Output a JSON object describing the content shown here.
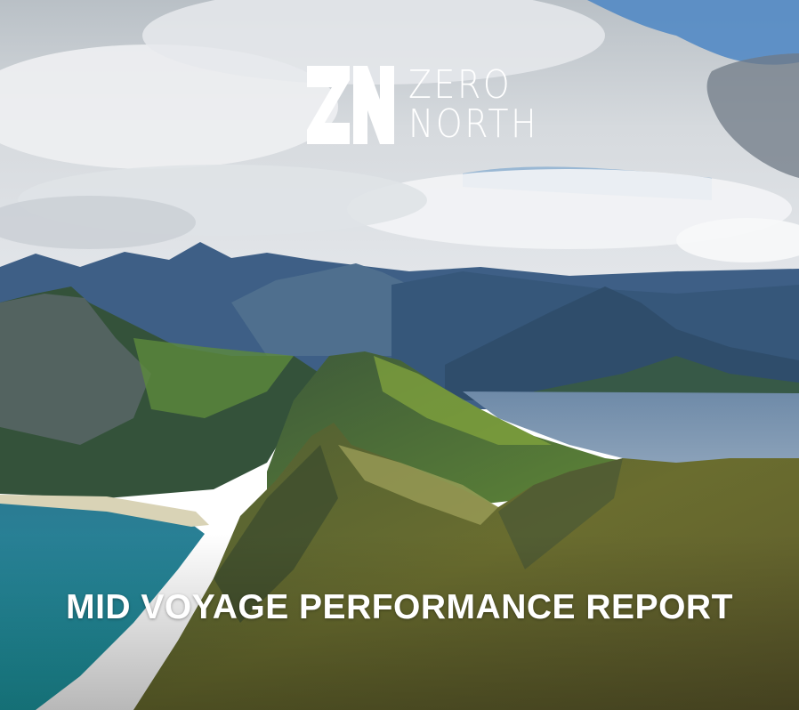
{
  "brand": {
    "monogram": "ZN",
    "name_line_1": "ZERO",
    "name_line_2": "NORTH"
  },
  "report": {
    "title": "MID VOYAGE PERFORMANCE REPORT"
  },
  "colors": {
    "text": "#ffffff",
    "sky": "#cdd3d8",
    "sea": "#2e7f96",
    "mountain": "#4f6a3a"
  }
}
